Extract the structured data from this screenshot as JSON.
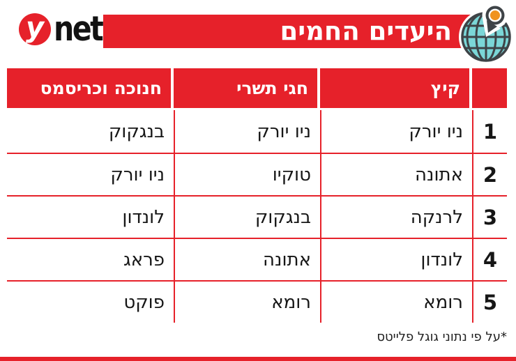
{
  "brand": {
    "logo_y": "y",
    "logo_net": "net"
  },
  "icons": {
    "globe_pin": "globe-location-pin-icon",
    "ynet_circle": "ynet-y-circle-icon"
  },
  "chart_data": {
    "type": "table",
    "title": "היעדים החמים",
    "direction": "rtl",
    "columns": [
      {
        "key": "rank",
        "label": ""
      },
      {
        "key": "summer",
        "label": "קיץ"
      },
      {
        "key": "tishrei",
        "label": "חגי תשרי"
      },
      {
        "key": "hanukkah",
        "label": "חנוכה וכריסמס"
      }
    ],
    "rows": [
      {
        "rank": "1",
        "summer": "ניו יורק",
        "tishrei": "ניו יורק",
        "hanukkah": "בנגקוק"
      },
      {
        "rank": "2",
        "summer": "אתונה",
        "tishrei": "טוקיו",
        "hanukkah": "ניו יורק"
      },
      {
        "rank": "3",
        "summer": "לרנקה",
        "tishrei": "בנגקוק",
        "hanukkah": "לונדון"
      },
      {
        "rank": "4",
        "summer": "לונדון",
        "tishrei": "אתונה",
        "hanukkah": "פראג"
      },
      {
        "rank": "5",
        "summer": "רומא",
        "tishrei": "רומא",
        "hanukkah": "פוקט"
      }
    ],
    "footnote": "*על פי נתוני גוגל פלייטס"
  },
  "colors": {
    "brand_red": "#e6212a",
    "globe_teal": "#7bd6d7",
    "pin_orange": "#f0931e",
    "icon_outline": "#3e4347",
    "text_dark": "#161616"
  }
}
